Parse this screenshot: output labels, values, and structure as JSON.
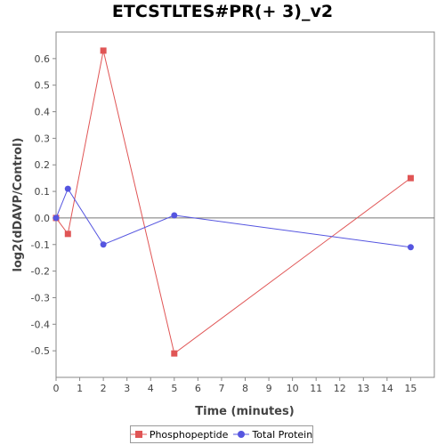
{
  "chart_data": {
    "type": "line",
    "title": "ETCSTLTES#PR(+ 3)_v2",
    "xlabel": "Time (minutes)",
    "ylabel": "log2(dDAVP/Control)",
    "xlim": [
      0,
      16
    ],
    "ylim": [
      -0.6,
      0.7
    ],
    "x_ticks": [
      0,
      1,
      2,
      3,
      4,
      5,
      6,
      7,
      8,
      9,
      10,
      11,
      12,
      13,
      14,
      15
    ],
    "y_ticks": [
      -0.5,
      -0.4,
      -0.3,
      -0.2,
      -0.1,
      0.0,
      0.1,
      0.2,
      0.3,
      0.4,
      0.5,
      0.6
    ],
    "y_tick_labels": [
      "-0.5",
      "-0.4",
      "-0.3",
      "-0.2",
      "-0.1",
      "0.0",
      "0.1",
      "0.2",
      "0.3",
      "0.4",
      "0.5",
      "0.6"
    ],
    "zero_line": true,
    "grid": false,
    "legend_position": "bottom",
    "series": [
      {
        "name": "Phosphopeptide",
        "color": "#e05555",
        "marker": "square",
        "x": [
          0,
          0.5,
          2,
          5,
          15
        ],
        "y": [
          0.0,
          -0.06,
          0.63,
          -0.51,
          0.15
        ]
      },
      {
        "name": "Total Protein",
        "color": "#5555e0",
        "marker": "circle",
        "x": [
          0,
          0.5,
          2,
          5,
          15
        ],
        "y": [
          0.0,
          0.11,
          -0.1,
          0.01,
          -0.11
        ]
      }
    ]
  }
}
